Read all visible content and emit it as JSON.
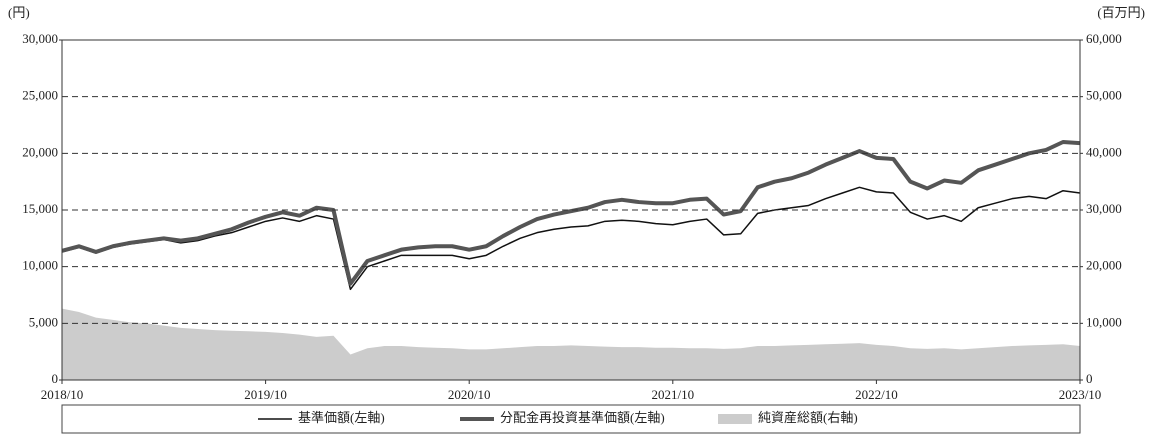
{
  "chart_data": {
    "type": "line",
    "y_unit_label": "(円)",
    "y2_unit_label": "(百万円)",
    "x": [
      "2018/10",
      "2018/11",
      "2018/12",
      "2019/01",
      "2019/02",
      "2019/03",
      "2019/04",
      "2019/05",
      "2019/06",
      "2019/07",
      "2019/08",
      "2019/09",
      "2019/10",
      "2019/11",
      "2019/12",
      "2020/01",
      "2020/02",
      "2020/03",
      "2020/04",
      "2020/05",
      "2020/06",
      "2020/07",
      "2020/08",
      "2020/09",
      "2020/10",
      "2020/11",
      "2020/12",
      "2021/01",
      "2021/02",
      "2021/03",
      "2021/04",
      "2021/05",
      "2021/06",
      "2021/07",
      "2021/08",
      "2021/09",
      "2021/10",
      "2021/11",
      "2021/12",
      "2022/01",
      "2022/02",
      "2022/03",
      "2022/04",
      "2022/05",
      "2022/06",
      "2022/07",
      "2022/08",
      "2022/09",
      "2022/10",
      "2022/11",
      "2022/12",
      "2023/01",
      "2023/02",
      "2023/03",
      "2023/04",
      "2023/05",
      "2023/06",
      "2023/07",
      "2023/08",
      "2023/09",
      "2023/10"
    ],
    "xlim": [
      "2018/10",
      "2023/10"
    ],
    "xticks": [
      "2018/10",
      "2019/10",
      "2020/10",
      "2021/10",
      "2022/10",
      "2023/10"
    ],
    "ylim": [
      0,
      30000
    ],
    "yticks": [
      0,
      {
        "value": 5000,
        "label": "5,000"
      },
      {
        "value": 10000,
        "label": "10,000"
      },
      {
        "value": 15000,
        "label": "15,000"
      },
      {
        "value": 20000,
        "label": "20,000"
      },
      {
        "value": 25000,
        "label": "25,000"
      },
      {
        "value": 30000,
        "label": "30,000"
      }
    ],
    "y2lim": [
      0,
      60000
    ],
    "y2ticks": [
      0,
      {
        "value": 10000,
        "label": "10,000"
      },
      {
        "value": 20000,
        "label": "20,000"
      },
      {
        "value": 30000,
        "label": "30,000"
      },
      {
        "value": 40000,
        "label": "40,000"
      },
      {
        "value": 50000,
        "label": "50,000"
      },
      {
        "value": 60000,
        "label": "60,000"
      }
    ],
    "grid": true,
    "series": [
      {
        "name": "純資産総額(右軸)",
        "color": "#cccccc",
        "kind": "area",
        "axis": "y2",
        "values": [
          12600,
          12000,
          11000,
          10600,
          10200,
          10000,
          9600,
          9200,
          9000,
          8800,
          8700,
          8600,
          8500,
          8300,
          8000,
          7600,
          7800,
          4500,
          5600,
          6000,
          6000,
          5800,
          5700,
          5600,
          5400,
          5400,
          5600,
          5800,
          6000,
          6000,
          6100,
          6000,
          5900,
          5800,
          5800,
          5700,
          5700,
          5600,
          5600,
          5500,
          5600,
          6000,
          6000,
          6100,
          6200,
          6300,
          6400,
          6500,
          6200,
          6000,
          5600,
          5500,
          5600,
          5400,
          5600,
          5800,
          6000,
          6100,
          6200,
          6300,
          6000
        ]
      },
      {
        "name": "基準価額(左軸)",
        "color": "#111111",
        "kind": "line",
        "width": 1.5,
        "values": [
          11300,
          11700,
          11200,
          11700,
          12000,
          12200,
          12400,
          12100,
          12300,
          12700,
          13000,
          13500,
          14000,
          14300,
          14000,
          14500,
          14200,
          8000,
          10000,
          10500,
          11000,
          11000,
          11000,
          11000,
          10700,
          11000,
          11800,
          12500,
          13000,
          13300,
          13500,
          13600,
          14000,
          14100,
          14000,
          13800,
          13700,
          14000,
          14200,
          12800,
          12900,
          14700,
          15000,
          15200,
          15400,
          16000,
          16500,
          17000,
          16600,
          16500,
          14800,
          14200,
          14500,
          14000,
          15200,
          15600,
          16000,
          16200,
          16000,
          16700,
          16500
        ]
      },
      {
        "name": "分配金再投資基準価額(左軸)",
        "color": "#555555",
        "kind": "line",
        "width": 4,
        "values": [
          11400,
          11800,
          11300,
          11800,
          12100,
          12300,
          12500,
          12300,
          12500,
          12900,
          13300,
          13900,
          14400,
          14800,
          14500,
          15200,
          15000,
          8500,
          10500,
          11000,
          11500,
          11700,
          11800,
          11800,
          11500,
          11800,
          12700,
          13500,
          14200,
          14600,
          14900,
          15200,
          15700,
          15900,
          15700,
          15600,
          15600,
          15900,
          16000,
          14600,
          14900,
          17000,
          17500,
          17800,
          18300,
          19000,
          19600,
          20200,
          19600,
          19500,
          17500,
          16900,
          17600,
          17400,
          18500,
          19000,
          19500,
          20000,
          20300,
          21000,
          20900
        ]
      }
    ]
  }
}
